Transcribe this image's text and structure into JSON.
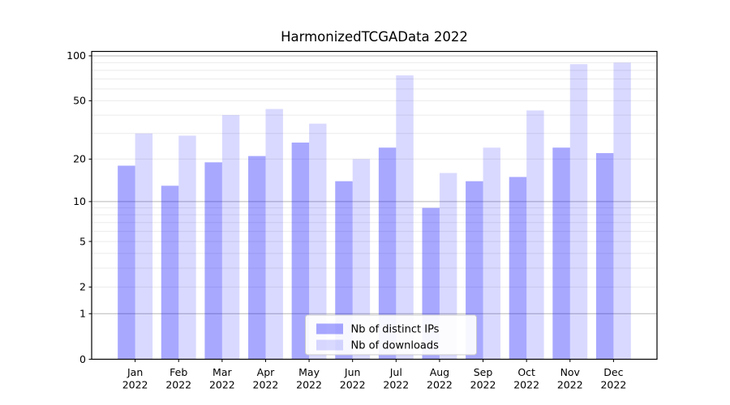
{
  "chart_data": {
    "type": "bar",
    "title": "HarmonizedTCGAData 2022",
    "categories": [
      "Jan",
      "Feb",
      "Mar",
      "Apr",
      "May",
      "Jun",
      "Jul",
      "Aug",
      "Sep",
      "Oct",
      "Nov",
      "Dec"
    ],
    "category_year": "2022",
    "series": [
      {
        "name": "Nb of distinct IPs",
        "color": "#0000ff",
        "alpha": 0.34,
        "values": [
          18,
          13,
          19,
          21,
          26,
          14,
          24,
          9,
          14,
          15,
          24,
          22
        ]
      },
      {
        "name": "Nb of downloads",
        "color": "#0000ff",
        "alpha": 0.15,
        "values": [
          30,
          29,
          40,
          44,
          35,
          20,
          74,
          16,
          24,
          43,
          88,
          90
        ]
      }
    ],
    "yscale": "log1p",
    "ylim": [
      0,
      107
    ],
    "ytick_values": [
      0,
      1,
      2,
      5,
      10,
      20,
      50,
      100
    ],
    "ytick_labels": [
      "0",
      "1",
      "2",
      "5",
      "10",
      "20",
      "50",
      "100"
    ],
    "major_gridlines": [
      1,
      10,
      100
    ],
    "minor_gridlines": [
      2,
      3,
      4,
      5,
      6,
      7,
      8,
      9,
      20,
      30,
      40,
      50,
      60,
      70,
      80,
      90
    ],
    "grid": true,
    "legend": {
      "position": "lower center",
      "labels": [
        "Nb of distinct IPs",
        "Nb of downloads"
      ]
    },
    "colors": {
      "bar_dark_on_white": "#aaaaf8",
      "bar_light_on_white": "#d8d8f8",
      "major_grid": "#b8b8b8",
      "minor_grid": "#ebebeb",
      "spine": "#000000",
      "text": "#000000"
    }
  }
}
